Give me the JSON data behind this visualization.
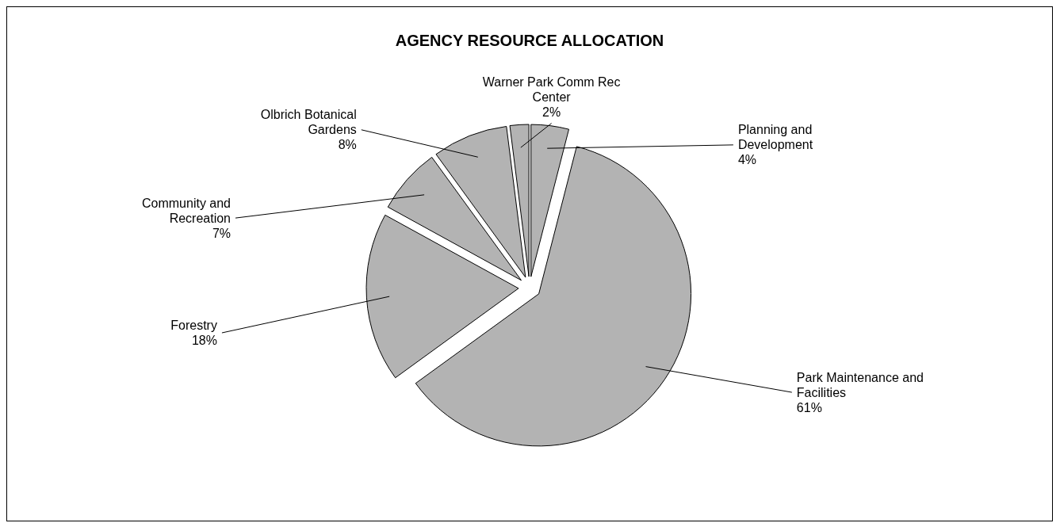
{
  "chart_data": {
    "type": "pie",
    "title": "AGENCY RESOURCE ALLOCATION",
    "categories": [
      "Planning and Development",
      "Park Maintenance and Facilities",
      "Forestry",
      "Community and Recreation",
      "Olbrich Botanical Gardens",
      "Warner Park Comm Rec Center"
    ],
    "values": [
      4,
      61,
      18,
      7,
      8,
      2
    ],
    "colors": [
      "#b3b3b3",
      "#b3b3b3",
      "#b3b3b3",
      "#b3b3b3",
      "#b3b3b3",
      "#b3b3b3"
    ],
    "value_labels": [
      "4%",
      "61%",
      "18%",
      "7%",
      "8%",
      "2%"
    ]
  }
}
